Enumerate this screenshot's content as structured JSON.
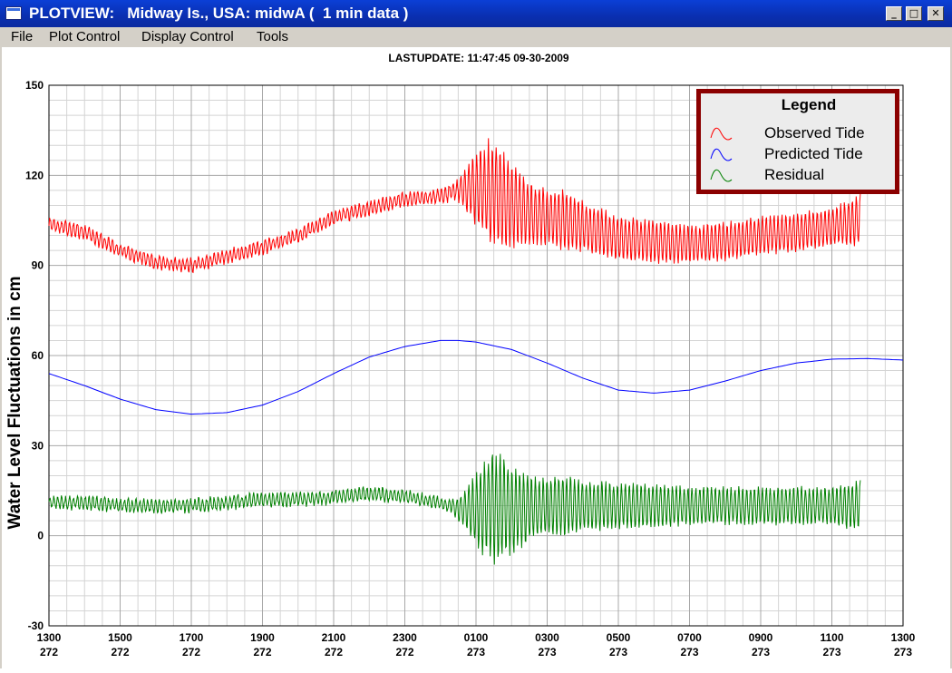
{
  "window": {
    "title": "PLOTVIEW:   Midway Is., USA: midwA (  1 min data )",
    "minimize_glyph": "_",
    "maximize_glyph": "□",
    "close_glyph": "✕"
  },
  "menu": {
    "items": [
      "File",
      "Plot Control",
      "Display Control",
      "Tools"
    ]
  },
  "plot": {
    "last_update": "LASTUPDATE: 11:47:45  09-30-2009",
    "ylabel": "Water Level Fluctuations in cm"
  },
  "chart_data": {
    "type": "line",
    "title": "LASTUPDATE: 11:47:45  09-30-2009",
    "xlabel": "",
    "ylabel": "Water Level Fluctuations in cm",
    "ylim": [
      -30,
      150
    ],
    "xlim_hours": [
      0,
      24
    ],
    "y_ticks": [
      "150",
      "120",
      "90",
      "60",
      "30",
      "0",
      "-30"
    ],
    "x_ticks": [
      {
        "time": "1300",
        "day": "272"
      },
      {
        "time": "1500",
        "day": "272"
      },
      {
        "time": "1700",
        "day": "272"
      },
      {
        "time": "1900",
        "day": "272"
      },
      {
        "time": "2100",
        "day": "272"
      },
      {
        "time": "2300",
        "day": "272"
      },
      {
        "time": "0100",
        "day": "273"
      },
      {
        "time": "0300",
        "day": "273"
      },
      {
        "time": "0500",
        "day": "273"
      },
      {
        "time": "0700",
        "day": "273"
      },
      {
        "time": "0900",
        "day": "273"
      },
      {
        "time": "1100",
        "day": "273"
      },
      {
        "time": "1300",
        "day": "273"
      }
    ],
    "grid": true,
    "legend": {
      "title": "Legend",
      "position": "top-right",
      "entries": [
        "Observed Tide",
        "Predicted Tide",
        "Residual"
      ]
    },
    "series": [
      {
        "name": "Observed Tide",
        "color": "#ff0000",
        "x_hours": [
          0,
          1,
          2,
          3,
          4,
          5,
          6,
          7,
          8,
          9,
          10,
          11,
          11.5,
          12,
          12.5,
          13,
          13.5,
          14,
          14.5,
          15,
          16,
          17,
          18,
          19,
          20,
          21,
          22,
          22.8
        ],
        "y": [
          104,
          101,
          95,
          91,
          90,
          93,
          96,
          100,
          106,
          109,
          112,
          113,
          115,
          116,
          114,
          110,
          107,
          106,
          105,
          103,
          99,
          98,
          97,
          98,
          100,
          101,
          103,
          105
        ],
        "oscillation_amplitude": [
          2,
          2,
          2,
          2,
          2,
          2,
          2,
          2,
          2,
          2,
          2,
          2,
          3,
          12,
          18,
          14,
          10,
          9,
          10,
          8,
          7,
          7,
          6,
          6,
          6,
          6,
          6,
          8
        ]
      },
      {
        "name": "Predicted Tide",
        "color": "#0000ff",
        "x_hours": [
          0,
          1,
          2,
          3,
          4,
          5,
          6,
          7,
          8,
          9,
          10,
          11,
          11.5,
          12,
          13,
          14,
          15,
          16,
          17,
          18,
          19,
          20,
          21,
          22,
          23,
          24
        ],
        "y": [
          54,
          50,
          45.5,
          42,
          40.5,
          41,
          43.5,
          48,
          54,
          59.5,
          63,
          65,
          65,
          64.5,
          62,
          57.5,
          52.5,
          48.5,
          47.5,
          48.5,
          51.5,
          55,
          57.5,
          58.8,
          59,
          58.5
        ]
      },
      {
        "name": "Residual",
        "color": "#008000",
        "x_hours": [
          0,
          1,
          2,
          3,
          4,
          5,
          6,
          7,
          8,
          9,
          10,
          11,
          11.5,
          12,
          12.5,
          13,
          13.5,
          14,
          14.5,
          15,
          16,
          17,
          18,
          19,
          20,
          21,
          22,
          22.8
        ],
        "y": [
          11,
          11,
          10,
          10,
          10,
          11,
          12,
          12,
          13,
          14,
          13,
          11,
          9,
          9,
          10,
          9,
          9,
          10,
          10,
          10,
          10,
          10,
          10,
          10,
          10,
          10,
          10,
          10
        ],
        "oscillation_amplitude": [
          2,
          2,
          2,
          2,
          2,
          2,
          2,
          2,
          2,
          2,
          2,
          2,
          3,
          12,
          18,
          14,
          10,
          9,
          10,
          8,
          7,
          7,
          6,
          6,
          6,
          6,
          6,
          8
        ]
      }
    ]
  }
}
